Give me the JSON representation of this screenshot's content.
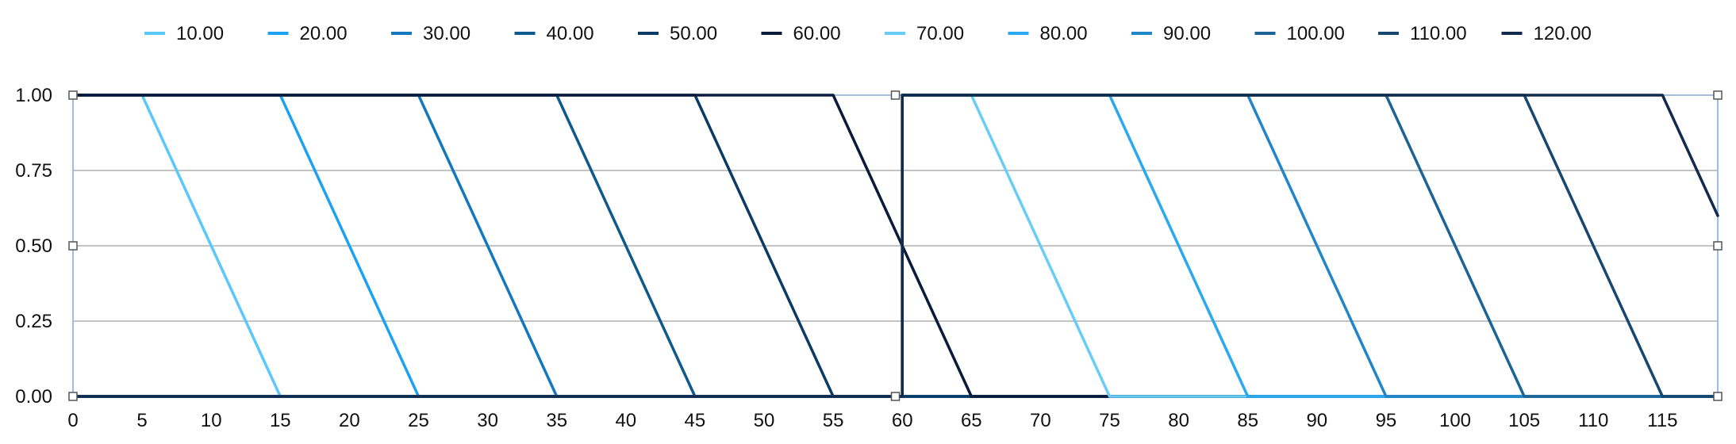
{
  "chart_data": {
    "type": "line",
    "title": "",
    "xlabel": "",
    "ylabel": "",
    "xlim": [
      0,
      119
    ],
    "ylim": [
      0,
      1
    ],
    "x_ticks": [
      0,
      5,
      10,
      15,
      20,
      25,
      30,
      35,
      40,
      45,
      50,
      55,
      60,
      65,
      70,
      75,
      80,
      85,
      90,
      95,
      100,
      105,
      110,
      115
    ],
    "x_tick_labels": [
      "0",
      "5",
      "10",
      "15",
      "20",
      "25",
      "30",
      "35",
      "40",
      "45",
      "50",
      "55",
      "60",
      "65",
      "70",
      "75",
      "80",
      "85",
      "90",
      "95",
      "100",
      "105",
      "110",
      "115"
    ],
    "y_ticks": [
      0,
      0.25,
      0.5,
      0.75,
      1
    ],
    "y_tick_labels": [
      "0.00",
      "0.25",
      "0.50",
      "0.75",
      "1.00"
    ],
    "grid": "horizontal",
    "legend_position": "top",
    "series": [
      {
        "name": "10.00",
        "color": "#5AC8FA",
        "points": [
          [
            0,
            1
          ],
          [
            5,
            1
          ],
          [
            15,
            0
          ],
          [
            119,
            0
          ]
        ]
      },
      {
        "name": "20.00",
        "color": "#1DA1F2",
        "points": [
          [
            0,
            1
          ],
          [
            15,
            1
          ],
          [
            25,
            0
          ],
          [
            119,
            0
          ]
        ]
      },
      {
        "name": "30.00",
        "color": "#1478BE",
        "points": [
          [
            0,
            1
          ],
          [
            25,
            1
          ],
          [
            35,
            0
          ],
          [
            119,
            0
          ]
        ]
      },
      {
        "name": "40.00",
        "color": "#0F5A8C",
        "points": [
          [
            0,
            1
          ],
          [
            35,
            1
          ],
          [
            45,
            0
          ],
          [
            119,
            0
          ]
        ]
      },
      {
        "name": "50.00",
        "color": "#0B3A64",
        "points": [
          [
            0,
            1
          ],
          [
            45,
            1
          ],
          [
            55,
            0
          ],
          [
            119,
            0
          ]
        ]
      },
      {
        "name": "60.00",
        "color": "#0A1A3A",
        "points": [
          [
            0,
            1
          ],
          [
            55,
            1
          ],
          [
            65,
            0
          ],
          [
            119,
            0
          ]
        ]
      },
      {
        "name": "70.00",
        "color": "#6ACDF8",
        "points": [
          [
            0,
            0
          ],
          [
            60,
            0
          ],
          [
            60,
            1
          ],
          [
            65,
            1
          ],
          [
            75,
            0
          ],
          [
            119,
            0
          ]
        ]
      },
      {
        "name": "80.00",
        "color": "#2AA8F0",
        "points": [
          [
            0,
            0
          ],
          [
            60,
            0
          ],
          [
            60,
            1
          ],
          [
            75,
            1
          ],
          [
            85,
            0
          ],
          [
            119,
            0
          ]
        ]
      },
      {
        "name": "90.00",
        "color": "#2285C8",
        "points": [
          [
            0,
            0
          ],
          [
            60,
            0
          ],
          [
            60,
            1
          ],
          [
            85,
            1
          ],
          [
            95,
            0
          ],
          [
            119,
            0
          ]
        ]
      },
      {
        "name": "100.00",
        "color": "#1C6396",
        "points": [
          [
            0,
            0
          ],
          [
            60,
            0
          ],
          [
            60,
            1
          ],
          [
            95,
            1
          ],
          [
            105,
            0
          ],
          [
            119,
            0
          ]
        ]
      },
      {
        "name": "110.00",
        "color": "#17466E",
        "points": [
          [
            0,
            0
          ],
          [
            60,
            0
          ],
          [
            60,
            1
          ],
          [
            105,
            1
          ],
          [
            115,
            0
          ],
          [
            119,
            0
          ]
        ]
      },
      {
        "name": "120.00",
        "color": "#122A4C",
        "points": [
          [
            0,
            0
          ],
          [
            60,
            0
          ],
          [
            60,
            1
          ],
          [
            115,
            1
          ],
          [
            119,
            0.6
          ]
        ]
      }
    ]
  }
}
